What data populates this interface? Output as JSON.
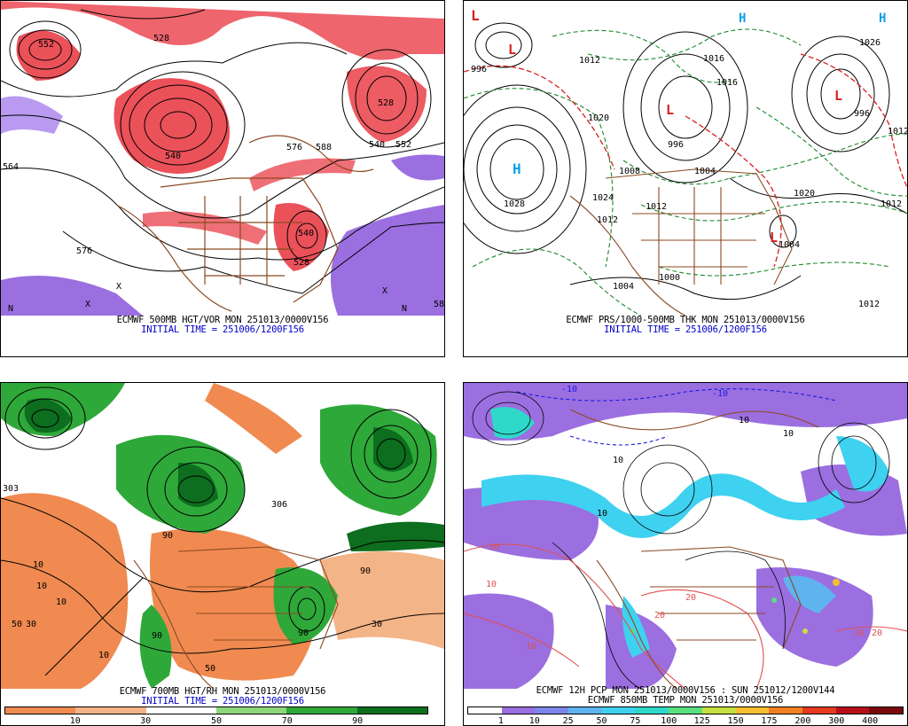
{
  "panels": [
    {
      "id": "p1",
      "caption": "ECMWF 500MB HGT/VOR MON 251013/0000V156",
      "init": "INITIAL TIME = 251006/1200F156",
      "labels": [
        "552",
        "528",
        "540",
        "576",
        "588",
        "552",
        "540",
        "528",
        "576",
        "564",
        "540",
        "528",
        "N",
        "N",
        "X",
        "X",
        "X",
        "58"
      ],
      "colors": {
        "vorticity": "#e8323c",
        "negative": "#9b6fe0"
      }
    },
    {
      "id": "p2",
      "caption": "ECMWF PRS/1000-500MB THK MON 251013/0000V156",
      "init": "INITIAL TIME = 251006/1200F156",
      "labels": [
        "L",
        "H",
        "H",
        "H",
        "L",
        "L",
        "L",
        "L",
        "996",
        "1028",
        "1020",
        "1004",
        "996",
        "1012",
        "1024",
        "1016",
        "1008",
        "1012",
        "1004",
        "1020",
        "1012",
        "1000",
        "1004",
        "1012",
        "1026",
        "1012",
        "1016",
        "1012",
        "996"
      ],
      "colors": {
        "thickness": "#1a8a2a",
        "thickness_warm": "#d81e1e",
        "highs": "#10a0e0"
      }
    },
    {
      "id": "p3",
      "caption": "ECMWF 700MB HGT/RH MON 251013/0000V156",
      "init": "INITIAL TIME = 251006/1200F156",
      "labels": [
        "303",
        "10",
        "10",
        "10",
        "50",
        "30",
        "90",
        "90",
        "90",
        "306",
        "90",
        "50",
        "30",
        "10"
      ],
      "colorbar": {
        "colors": [
          "#f08a50",
          "#f3b487",
          "#ffffff",
          "#8ed67a",
          "#2fa83a",
          "#0c6e1e"
        ],
        "ticks": [
          "10",
          "30",
          "50",
          "70",
          "90"
        ]
      }
    },
    {
      "id": "p4",
      "caption": "ECMWF 12H PCP MON 251013/0000V156 : SUN 251012/1200V144",
      "caption2": "ECMWF 850MB TEMP MON 251013/0000V156",
      "labels": [
        "10",
        "10",
        "-10",
        "10",
        "-10",
        "10",
        "20",
        "20",
        "10",
        "10",
        "20",
        "10",
        "20"
      ],
      "colorbar": {
        "colors": [
          "#ffffff",
          "#9b6fe0",
          "#7c86e8",
          "#5fb4ef",
          "#3fd1f0",
          "#2fd9c9",
          "#59e07e",
          "#c7e03d",
          "#f4c030",
          "#f28020",
          "#e43a20",
          "#b8101a",
          "#7a0a0e"
        ],
        "ticks": [
          "1",
          "10",
          "25",
          "50",
          "75",
          "100",
          "125",
          "150",
          "175",
          "200",
          "300",
          "400"
        ]
      }
    }
  ]
}
